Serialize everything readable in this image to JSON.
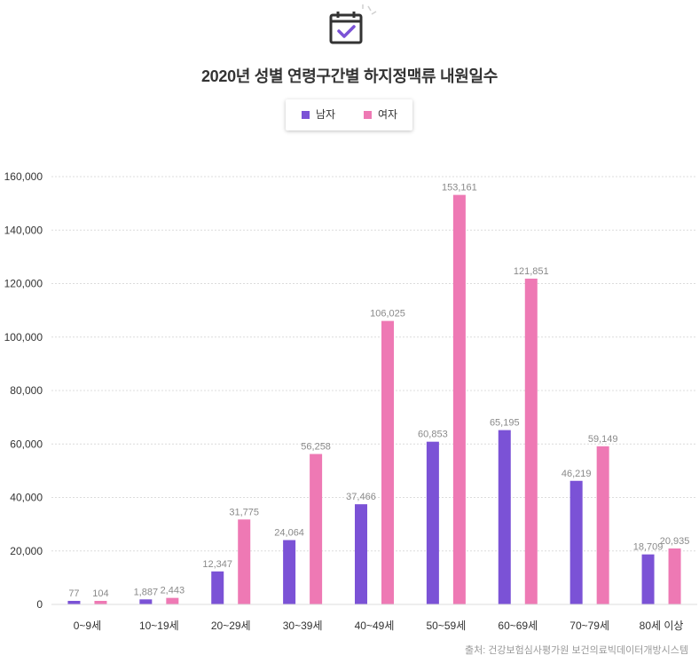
{
  "chart_data": {
    "type": "bar",
    "title": "2020년 성별 연령구간별 하지정맥류 내원일수",
    "categories": [
      "0~9세",
      "10~19세",
      "20~29세",
      "30~39세",
      "40~49세",
      "50~59세",
      "60~69세",
      "70~79세",
      "80세 이상"
    ],
    "series": [
      {
        "name": "남자",
        "color": "#7b52d6",
        "values": [
          77,
          1887,
          12347,
          24064,
          37466,
          60853,
          65195,
          46219,
          18709
        ],
        "labels": [
          "77",
          "1,887",
          "12,347",
          "24,064",
          "37,466",
          "60,853",
          "65,195",
          "46,219",
          "18,709"
        ]
      },
      {
        "name": "여자",
        "color": "#ee79b4",
        "values": [
          104,
          2443,
          31775,
          56258,
          106025,
          153161,
          121851,
          59149,
          20935
        ],
        "labels": [
          "104",
          "2,443",
          "31,775",
          "56,258",
          "106,025",
          "153,161",
          "121,851",
          "59,149",
          "20,935"
        ]
      }
    ],
    "ylim": [
      0,
      160000
    ],
    "yticks": [
      0,
      20000,
      40000,
      60000,
      80000,
      100000,
      120000,
      140000,
      160000
    ],
    "ytick_labels": [
      "0",
      "20,000",
      "40,000",
      "60,000",
      "80,000",
      "100,000",
      "120,000",
      "140,000",
      "160,000"
    ],
    "grid": true,
    "legend_position": "top-center",
    "xlabel": "",
    "ylabel": ""
  },
  "source": "출처: 건강보험심사평가원 보건의료빅데이터개방시스템",
  "icon": "calendar-check-icon"
}
